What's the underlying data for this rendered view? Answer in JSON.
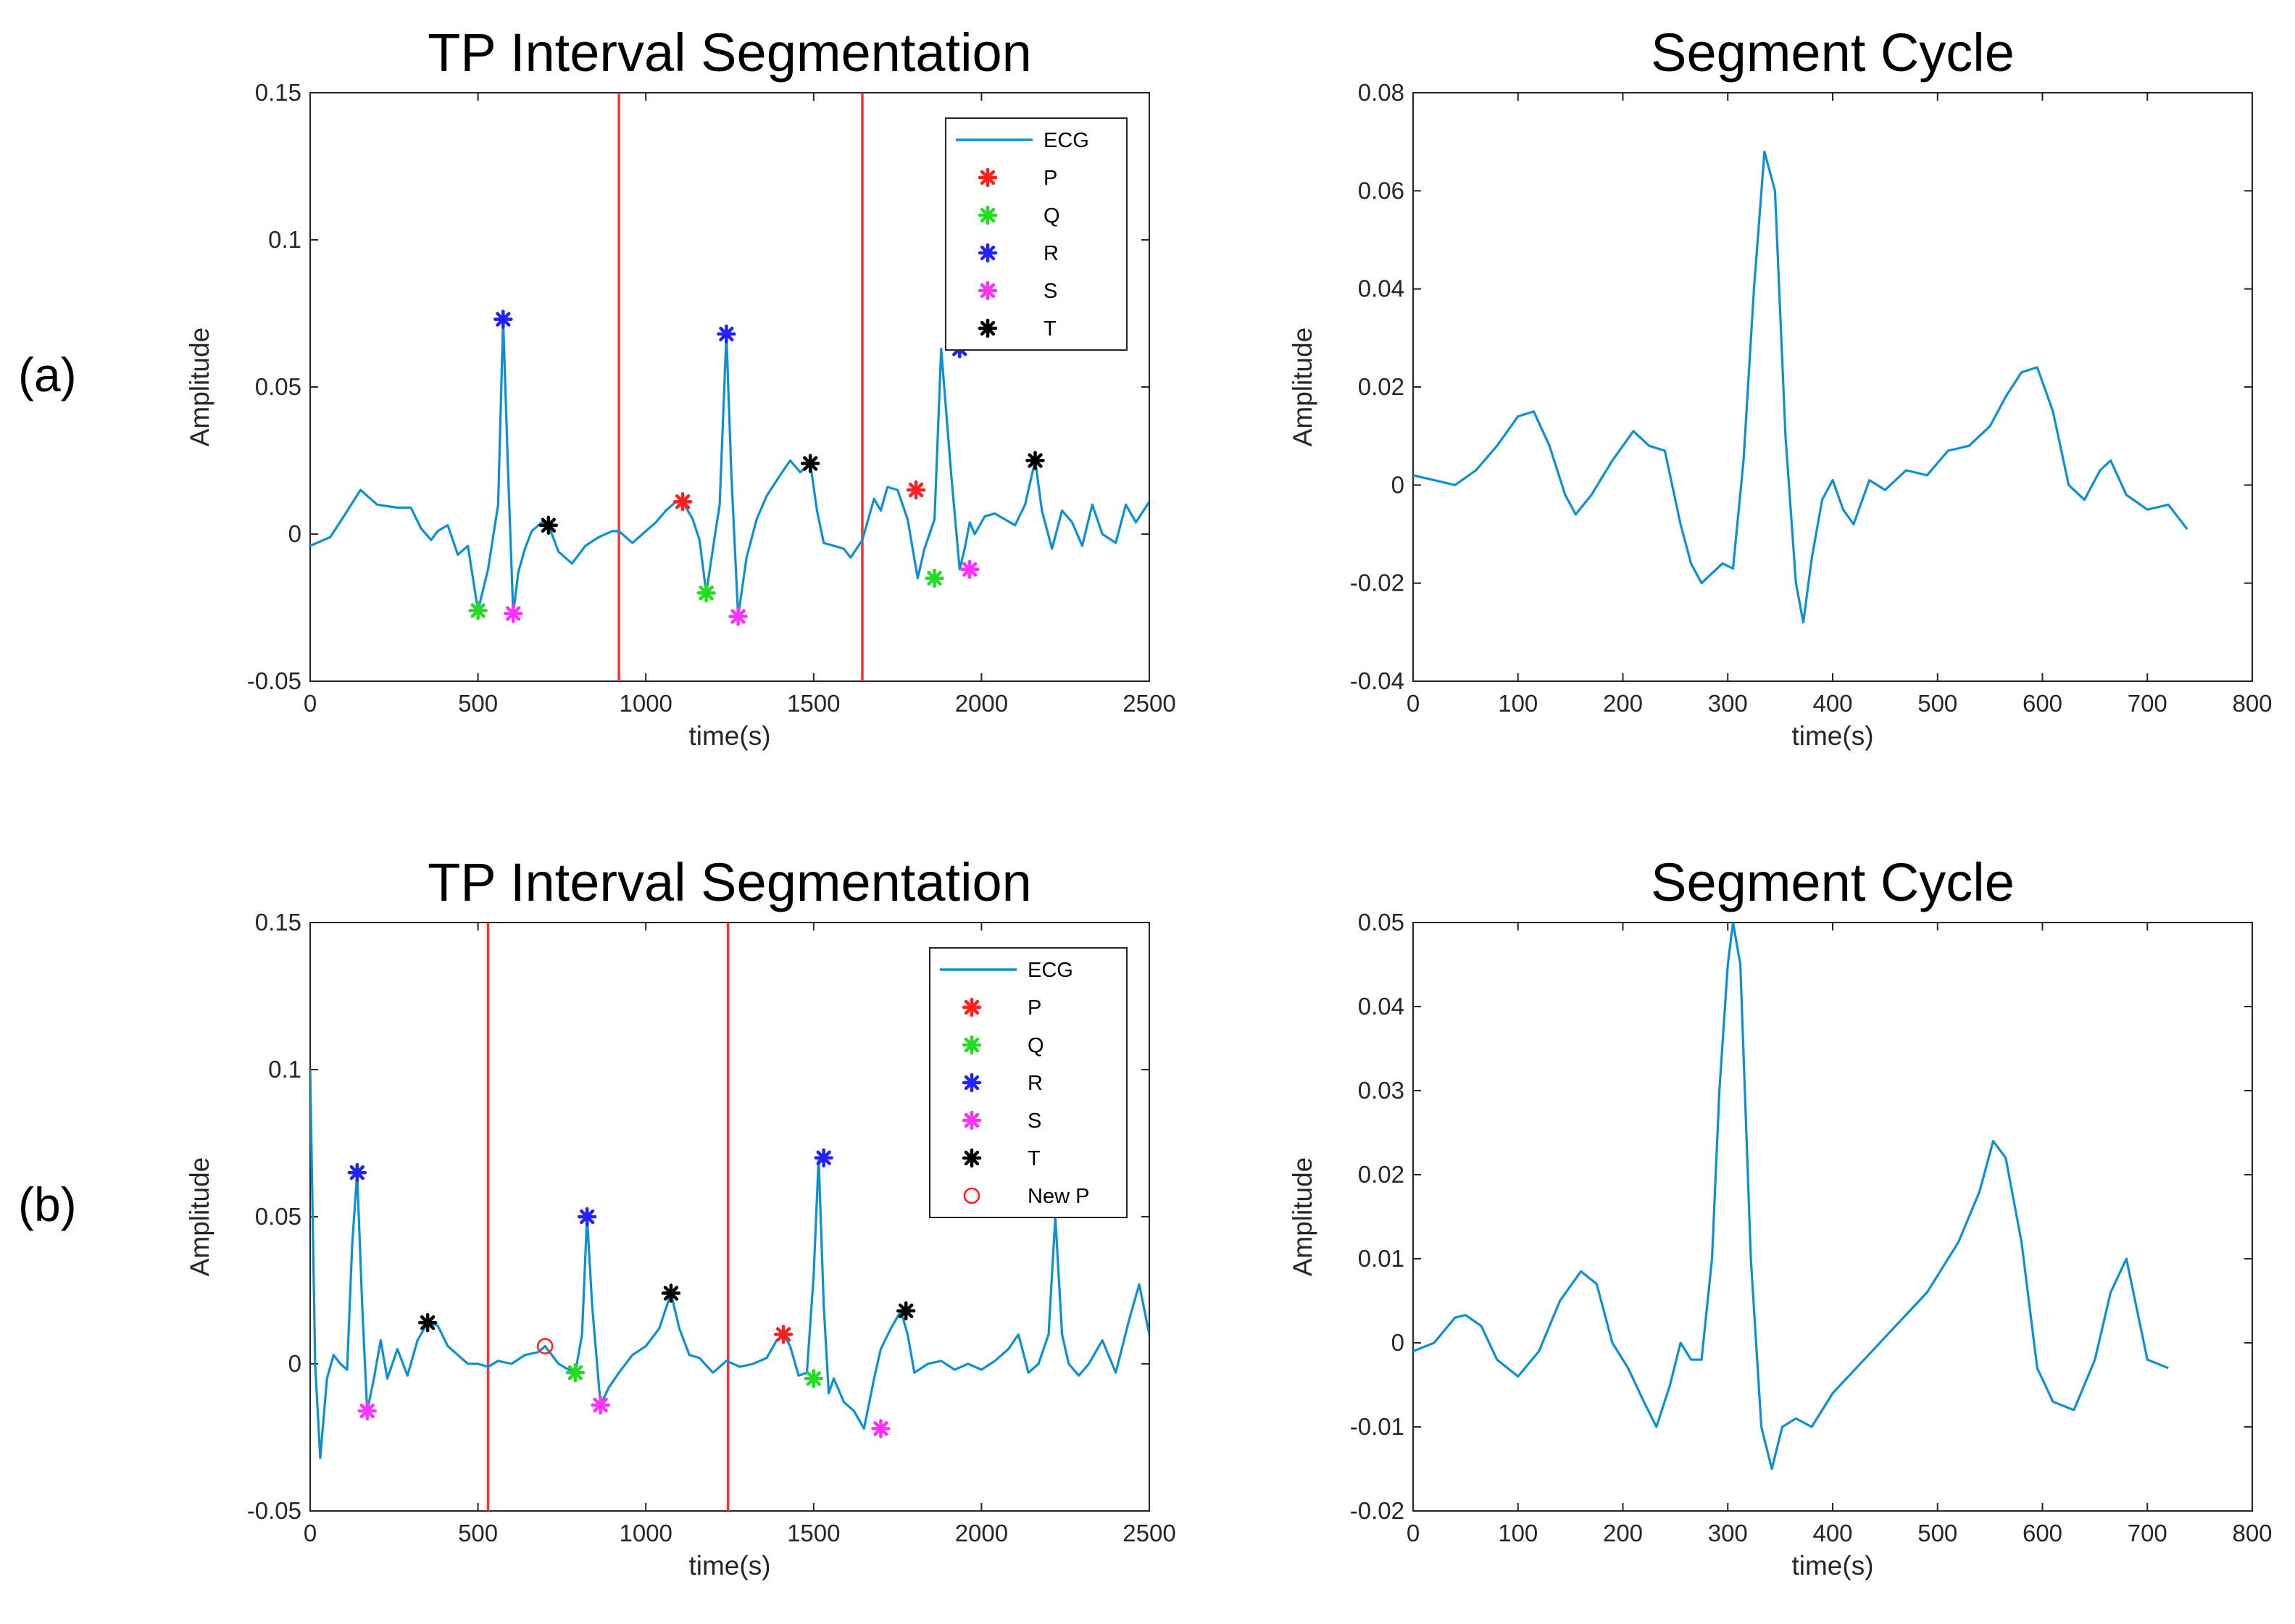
{
  "panel_labels": [
    "(a)",
    "(b)"
  ],
  "chart_data": [
    {
      "type": "line",
      "panel": "(a)",
      "title": "TP Interval Segmentation",
      "xlabel": "time(s)",
      "ylabel": "Amplitude",
      "xlim": [
        0,
        2500
      ],
      "ylim": [
        -0.05,
        0.15
      ],
      "xticks": [
        0,
        500,
        1000,
        1500,
        2000,
        2500
      ],
      "yticks": [
        -0.05,
        0,
        0.05,
        0.1,
        0.15
      ],
      "xtick_labels": [
        "0",
        "500",
        "1000",
        "1500",
        "2000",
        "2500"
      ],
      "ytick_labels": [
        "-0.05",
        "0",
        "0.05",
        "0.1",
        "0.15"
      ],
      "legend_position": "top-right",
      "legend": [
        "ECG",
        "P",
        "Q",
        "R",
        "S",
        "T"
      ],
      "vlines": [
        920,
        1645
      ],
      "series": [
        {
          "name": "ECG",
          "color": "#0e8fd0",
          "x": [
            0,
            60,
            100,
            150,
            200,
            260,
            300,
            330,
            360,
            380,
            410,
            440,
            470,
            500,
            530,
            560,
            575,
            590,
            605,
            620,
            640,
            660,
            690,
            710,
            740,
            780,
            820,
            860,
            900,
            920,
            960,
            1000,
            1030,
            1060,
            1090,
            1110,
            1140,
            1160,
            1180,
            1200,
            1220,
            1240,
            1255,
            1275,
            1300,
            1330,
            1360,
            1400,
            1430,
            1460,
            1490,
            1510,
            1530,
            1560,
            1590,
            1610,
            1645,
            1680,
            1700,
            1720,
            1750,
            1780,
            1810,
            1830,
            1860,
            1880,
            1910,
            1935,
            1950,
            1965,
            1980,
            2010,
            2040,
            2070,
            2100,
            2130,
            2160,
            2180,
            2210,
            2240,
            2270,
            2300,
            2330,
            2360,
            2400,
            2430,
            2460,
            2500
          ],
          "y": [
            -0.004,
            -0.001,
            0.006,
            0.015,
            0.01,
            0.009,
            0.009,
            0.002,
            -0.002,
            0.001,
            0.003,
            -0.007,
            -0.004,
            -0.026,
            -0.012,
            0.01,
            0.073,
            0.02,
            -0.027,
            -0.013,
            -0.005,
            0.001,
            0.004,
            0.003,
            -0.006,
            -0.01,
            -0.004,
            -0.001,
            0.001,
            0.001,
            -0.003,
            0.001,
            0.004,
            0.008,
            0.011,
            0.011,
            0.005,
            -0.002,
            -0.02,
            -0.005,
            0.01,
            0.068,
            0.02,
            -0.028,
            -0.008,
            0.005,
            0.013,
            0.02,
            0.025,
            0.021,
            0.024,
            0.008,
            -0.003,
            -0.004,
            -0.005,
            -0.008,
            -0.002,
            0.012,
            0.008,
            0.016,
            0.015,
            0.005,
            -0.015,
            -0.005,
            0.005,
            0.063,
            0.02,
            -0.012,
            -0.005,
            0.004,
            0.0,
            0.006,
            0.007,
            0.005,
            0.003,
            0.01,
            0.025,
            0.008,
            -0.005,
            0.008,
            0.004,
            -0.004,
            0.01,
            0.0,
            -0.003,
            0.01,
            0.004,
            0.011
          ]
        },
        {
          "name": "P",
          "color": "#ff2020",
          "x": [
            1110,
            1805
          ],
          "y": [
            0.011,
            0.015
          ]
        },
        {
          "name": "Q",
          "color": "#22dd22",
          "x": [
            500,
            1180,
            1860
          ],
          "y": [
            -0.026,
            -0.02,
            -0.015
          ]
        },
        {
          "name": "R",
          "color": "#2222ff",
          "x": [
            575,
            1240,
            1935
          ],
          "y": [
            0.073,
            0.068,
            0.063
          ]
        },
        {
          "name": "S",
          "color": "#ff33ff",
          "x": [
            605,
            1275,
            1965
          ],
          "y": [
            -0.027,
            -0.028,
            -0.012
          ]
        },
        {
          "name": "T",
          "color": "#000000",
          "x": [
            710,
            1490,
            2160
          ],
          "y": [
            0.003,
            0.024,
            0.025
          ]
        }
      ]
    },
    {
      "type": "line",
      "panel": "(a)",
      "title": "Segment Cycle",
      "xlabel": "time(s)",
      "ylabel": "Amplitude",
      "xlim": [
        0,
        800
      ],
      "ylim": [
        -0.04,
        0.08
      ],
      "xticks": [
        0,
        100,
        200,
        300,
        400,
        500,
        600,
        700,
        800
      ],
      "yticks": [
        -0.04,
        -0.02,
        0,
        0.02,
        0.04,
        0.06,
        0.08
      ],
      "xtick_labels": [
        "0",
        "100",
        "200",
        "300",
        "400",
        "500",
        "600",
        "700",
        "800"
      ],
      "ytick_labels": [
        "-0.04",
        "-0.02",
        "0",
        "0.02",
        "0.04",
        "0.06",
        "0.08"
      ],
      "series": [
        {
          "color": "#0e8fd0",
          "x": [
            0,
            20,
            40,
            60,
            80,
            100,
            115,
            130,
            145,
            155,
            170,
            190,
            210,
            225,
            240,
            255,
            265,
            275,
            285,
            295,
            305,
            315,
            325,
            335,
            345,
            355,
            365,
            372,
            380,
            390,
            400,
            410,
            420,
            435,
            450,
            470,
            490,
            510,
            530,
            550,
            565,
            580,
            595,
            610,
            625,
            640,
            655,
            665,
            680,
            700,
            720,
            738
          ],
          "y": [
            0.002,
            0.001,
            0.0,
            0.003,
            0.008,
            0.014,
            0.015,
            0.008,
            -0.002,
            -0.006,
            -0.002,
            0.005,
            0.011,
            0.008,
            0.007,
            -0.008,
            -0.016,
            -0.02,
            -0.018,
            -0.016,
            -0.017,
            0.005,
            0.04,
            0.068,
            0.06,
            0.01,
            -0.02,
            -0.028,
            -0.015,
            -0.003,
            0.001,
            -0.005,
            -0.008,
            0.001,
            -0.001,
            0.003,
            0.002,
            0.007,
            0.008,
            0.012,
            0.018,
            0.023,
            0.024,
            0.015,
            0.0,
            -0.003,
            0.003,
            0.005,
            -0.002,
            -0.005,
            -0.004,
            -0.009
          ]
        }
      ]
    },
    {
      "type": "line",
      "panel": "(b)",
      "title": "TP Interval Segmentation",
      "xlabel": "time(s)",
      "ylabel": "Amplitude",
      "xlim": [
        0,
        2500
      ],
      "ylim": [
        -0.05,
        0.15
      ],
      "xticks": [
        0,
        500,
        1000,
        1500,
        2000,
        2500
      ],
      "yticks": [
        -0.05,
        0,
        0.05,
        0.1,
        0.15
      ],
      "xtick_labels": [
        "0",
        "500",
        "1000",
        "1500",
        "2000",
        "2500"
      ],
      "ytick_labels": [
        "-0.05",
        "0",
        "0.05",
        "0.1",
        "0.15"
      ],
      "legend_position": "top-right",
      "legend": [
        "ECG",
        "P",
        "Q",
        "R",
        "S",
        "T",
        "New P"
      ],
      "vlines": [
        530,
        1245
      ],
      "series": [
        {
          "name": "ECG",
          "color": "#0e8fd0",
          "x": [
            0,
            15,
            30,
            50,
            70,
            90,
            110,
            125,
            140,
            155,
            170,
            190,
            210,
            230,
            260,
            290,
            320,
            350,
            380,
            410,
            440,
            470,
            500,
            530,
            560,
            600,
            640,
            680,
            700,
            740,
            770,
            790,
            810,
            825,
            840,
            865,
            890,
            920,
            960,
            1000,
            1040,
            1075,
            1100,
            1130,
            1160,
            1200,
            1240,
            1280,
            1320,
            1360,
            1390,
            1410,
            1430,
            1455,
            1480,
            1500,
            1515,
            1530,
            1545,
            1560,
            1590,
            1620,
            1650,
            1680,
            1700,
            1730,
            1760,
            1780,
            1800,
            1840,
            1880,
            1920,
            1960,
            2000,
            2040,
            2080,
            2110,
            2140,
            2170,
            2200,
            2220,
            2240,
            2260,
            2290,
            2320,
            2360,
            2400,
            2440,
            2470,
            2500
          ],
          "y": [
            0.1,
            0.0,
            -0.032,
            -0.005,
            0.003,
            0.0,
            -0.002,
            0.04,
            0.065,
            0.02,
            -0.016,
            -0.005,
            0.008,
            -0.005,
            0.005,
            -0.004,
            0.008,
            0.014,
            0.013,
            0.006,
            0.003,
            0.0,
            0.0,
            -0.001,
            0.001,
            0.0,
            0.003,
            0.004,
            0.006,
            0.0,
            -0.002,
            -0.003,
            0.01,
            0.05,
            0.02,
            -0.014,
            -0.008,
            -0.003,
            0.003,
            0.006,
            0.012,
            0.024,
            0.012,
            0.003,
            0.002,
            -0.003,
            0.001,
            -0.001,
            0.0,
            0.002,
            0.008,
            0.01,
            0.006,
            -0.004,
            -0.003,
            0.03,
            0.07,
            0.02,
            -0.01,
            -0.005,
            -0.013,
            -0.016,
            -0.022,
            -0.005,
            0.005,
            0.012,
            0.018,
            0.01,
            -0.003,
            0.0,
            0.001,
            -0.002,
            0.0,
            -0.002,
            0.001,
            0.005,
            0.01,
            -0.003,
            0.0,
            0.01,
            0.05,
            0.01,
            0.0,
            -0.004,
            0.0,
            0.008,
            -0.003,
            0.015,
            0.027,
            0.01
          ]
        },
        {
          "name": "P",
          "color": "#ff2020",
          "x": [
            1410
          ],
          "y": [
            0.01
          ]
        },
        {
          "name": "Q",
          "color": "#22dd22",
          "x": [
            790,
            1500
          ],
          "y": [
            -0.003,
            -0.005
          ]
        },
        {
          "name": "R",
          "color": "#2222ff",
          "x": [
            140,
            825,
            1530
          ],
          "y": [
            0.065,
            0.05,
            0.07
          ]
        },
        {
          "name": "S",
          "color": "#ff33ff",
          "x": [
            170,
            865,
            1700
          ],
          "y": [
            -0.016,
            -0.014,
            -0.022
          ]
        },
        {
          "name": "T",
          "color": "#000000",
          "x": [
            350,
            1075,
            1775
          ],
          "y": [
            0.014,
            0.024,
            0.018
          ]
        },
        {
          "name": "New P",
          "color": "#ff2020",
          "x": [
            700
          ],
          "y": [
            0.006
          ]
        }
      ]
    },
    {
      "type": "line",
      "panel": "(b)",
      "title": "Segment Cycle",
      "xlabel": "time(s)",
      "ylabel": "Amplitude",
      "xlim": [
        0,
        800
      ],
      "ylim": [
        -0.02,
        0.05
      ],
      "xticks": [
        0,
        100,
        200,
        300,
        400,
        500,
        600,
        700,
        800
      ],
      "yticks": [
        -0.02,
        -0.01,
        0,
        0.01,
        0.02,
        0.03,
        0.04,
        0.05
      ],
      "xtick_labels": [
        "0",
        "100",
        "200",
        "300",
        "400",
        "500",
        "600",
        "700",
        "800"
      ],
      "ytick_labels": [
        "-0.02",
        "-0.01",
        "0",
        "0.01",
        "0.02",
        "0.03",
        "0.04",
        "0.05"
      ],
      "series": [
        {
          "color": "#0e8fd0",
          "x": [
            0,
            20,
            40,
            50,
            65,
            80,
            100,
            120,
            140,
            160,
            175,
            190,
            205,
            220,
            232,
            245,
            255,
            265,
            275,
            285,
            292,
            300,
            305,
            312,
            322,
            332,
            342,
            352,
            365,
            380,
            400,
            430,
            460,
            490,
            520,
            540,
            553,
            565,
            580,
            595,
            610,
            630,
            650,
            665,
            680,
            700,
            720
          ],
          "y": [
            -0.001,
            0.0,
            0.003,
            0.0033,
            0.002,
            -0.002,
            -0.004,
            -0.001,
            0.005,
            0.0085,
            0.007,
            0.0,
            -0.003,
            -0.007,
            -0.01,
            -0.005,
            0.0,
            -0.002,
            -0.002,
            0.01,
            0.03,
            0.045,
            0.05,
            0.045,
            0.01,
            -0.01,
            -0.015,
            -0.01,
            -0.009,
            -0.01,
            -0.006,
            -0.002,
            0.002,
            0.006,
            0.012,
            0.018,
            0.024,
            0.022,
            0.012,
            -0.003,
            -0.007,
            -0.008,
            -0.002,
            0.006,
            0.01,
            -0.002,
            -0.003
          ]
        }
      ]
    }
  ]
}
